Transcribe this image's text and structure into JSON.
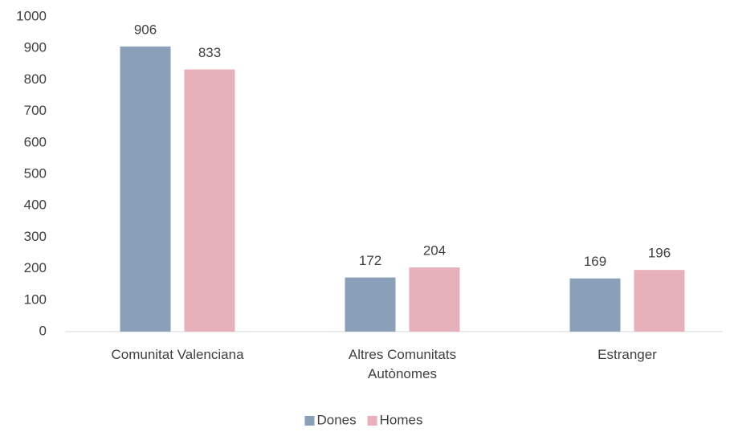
{
  "chart_data": {
    "type": "bar",
    "categories": [
      "Comunitat Valenciana",
      "Altres Comunitats Autònomes",
      "Estranger"
    ],
    "series": [
      {
        "name": "Dones",
        "color": "#8aa0b8",
        "values": [
          906,
          172,
          169
        ]
      },
      {
        "name": "Homes",
        "color": "#e6b1bb",
        "values": [
          833,
          204,
          196
        ]
      }
    ],
    "ylim": [
      0,
      1000
    ],
    "yticks": [
      0,
      100,
      200,
      300,
      400,
      500,
      600,
      700,
      800,
      900,
      1000
    ],
    "grid": false,
    "legend": "bottom"
  }
}
